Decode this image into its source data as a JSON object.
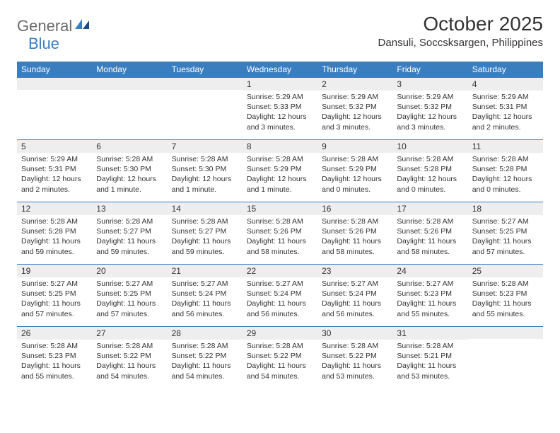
{
  "logo": {
    "word1": "General",
    "word2": "Blue"
  },
  "title": "October 2025",
  "location": "Dansuli, Soccsksargen, Philippines",
  "colors": {
    "header_bg": "#3b7ec0",
    "header_text": "#ffffff",
    "daynum_bg": "#eeeeee",
    "row_border": "#3b7ec0",
    "page_bg": "#ffffff",
    "text": "#333333",
    "logo_gray": "#6b6b6b",
    "logo_blue": "#3b7ec0"
  },
  "table": {
    "type": "calendar",
    "columns": [
      "Sunday",
      "Monday",
      "Tuesday",
      "Wednesday",
      "Thursday",
      "Friday",
      "Saturday"
    ],
    "col_count": 7,
    "fontsize_header": 12,
    "fontsize_daynum": 12,
    "fontsize_body": 10.5,
    "weeks": [
      [
        {
          "day": "",
          "sunrise": "",
          "sunset": "",
          "daylight": ""
        },
        {
          "day": "",
          "sunrise": "",
          "sunset": "",
          "daylight": ""
        },
        {
          "day": "",
          "sunrise": "",
          "sunset": "",
          "daylight": ""
        },
        {
          "day": "1",
          "sunrise": "Sunrise: 5:29 AM",
          "sunset": "Sunset: 5:33 PM",
          "daylight": "Daylight: 12 hours and 3 minutes."
        },
        {
          "day": "2",
          "sunrise": "Sunrise: 5:29 AM",
          "sunset": "Sunset: 5:32 PM",
          "daylight": "Daylight: 12 hours and 3 minutes."
        },
        {
          "day": "3",
          "sunrise": "Sunrise: 5:29 AM",
          "sunset": "Sunset: 5:32 PM",
          "daylight": "Daylight: 12 hours and 3 minutes."
        },
        {
          "day": "4",
          "sunrise": "Sunrise: 5:29 AM",
          "sunset": "Sunset: 5:31 PM",
          "daylight": "Daylight: 12 hours and 2 minutes."
        }
      ],
      [
        {
          "day": "5",
          "sunrise": "Sunrise: 5:29 AM",
          "sunset": "Sunset: 5:31 PM",
          "daylight": "Daylight: 12 hours and 2 minutes."
        },
        {
          "day": "6",
          "sunrise": "Sunrise: 5:28 AM",
          "sunset": "Sunset: 5:30 PM",
          "daylight": "Daylight: 12 hours and 1 minute."
        },
        {
          "day": "7",
          "sunrise": "Sunrise: 5:28 AM",
          "sunset": "Sunset: 5:30 PM",
          "daylight": "Daylight: 12 hours and 1 minute."
        },
        {
          "day": "8",
          "sunrise": "Sunrise: 5:28 AM",
          "sunset": "Sunset: 5:29 PM",
          "daylight": "Daylight: 12 hours and 1 minute."
        },
        {
          "day": "9",
          "sunrise": "Sunrise: 5:28 AM",
          "sunset": "Sunset: 5:29 PM",
          "daylight": "Daylight: 12 hours and 0 minutes."
        },
        {
          "day": "10",
          "sunrise": "Sunrise: 5:28 AM",
          "sunset": "Sunset: 5:28 PM",
          "daylight": "Daylight: 12 hours and 0 minutes."
        },
        {
          "day": "11",
          "sunrise": "Sunrise: 5:28 AM",
          "sunset": "Sunset: 5:28 PM",
          "daylight": "Daylight: 12 hours and 0 minutes."
        }
      ],
      [
        {
          "day": "12",
          "sunrise": "Sunrise: 5:28 AM",
          "sunset": "Sunset: 5:28 PM",
          "daylight": "Daylight: 11 hours and 59 minutes."
        },
        {
          "day": "13",
          "sunrise": "Sunrise: 5:28 AM",
          "sunset": "Sunset: 5:27 PM",
          "daylight": "Daylight: 11 hours and 59 minutes."
        },
        {
          "day": "14",
          "sunrise": "Sunrise: 5:28 AM",
          "sunset": "Sunset: 5:27 PM",
          "daylight": "Daylight: 11 hours and 59 minutes."
        },
        {
          "day": "15",
          "sunrise": "Sunrise: 5:28 AM",
          "sunset": "Sunset: 5:26 PM",
          "daylight": "Daylight: 11 hours and 58 minutes."
        },
        {
          "day": "16",
          "sunrise": "Sunrise: 5:28 AM",
          "sunset": "Sunset: 5:26 PM",
          "daylight": "Daylight: 11 hours and 58 minutes."
        },
        {
          "day": "17",
          "sunrise": "Sunrise: 5:28 AM",
          "sunset": "Sunset: 5:26 PM",
          "daylight": "Daylight: 11 hours and 58 minutes."
        },
        {
          "day": "18",
          "sunrise": "Sunrise: 5:27 AM",
          "sunset": "Sunset: 5:25 PM",
          "daylight": "Daylight: 11 hours and 57 minutes."
        }
      ],
      [
        {
          "day": "19",
          "sunrise": "Sunrise: 5:27 AM",
          "sunset": "Sunset: 5:25 PM",
          "daylight": "Daylight: 11 hours and 57 minutes."
        },
        {
          "day": "20",
          "sunrise": "Sunrise: 5:27 AM",
          "sunset": "Sunset: 5:25 PM",
          "daylight": "Daylight: 11 hours and 57 minutes."
        },
        {
          "day": "21",
          "sunrise": "Sunrise: 5:27 AM",
          "sunset": "Sunset: 5:24 PM",
          "daylight": "Daylight: 11 hours and 56 minutes."
        },
        {
          "day": "22",
          "sunrise": "Sunrise: 5:27 AM",
          "sunset": "Sunset: 5:24 PM",
          "daylight": "Daylight: 11 hours and 56 minutes."
        },
        {
          "day": "23",
          "sunrise": "Sunrise: 5:27 AM",
          "sunset": "Sunset: 5:24 PM",
          "daylight": "Daylight: 11 hours and 56 minutes."
        },
        {
          "day": "24",
          "sunrise": "Sunrise: 5:27 AM",
          "sunset": "Sunset: 5:23 PM",
          "daylight": "Daylight: 11 hours and 55 minutes."
        },
        {
          "day": "25",
          "sunrise": "Sunrise: 5:28 AM",
          "sunset": "Sunset: 5:23 PM",
          "daylight": "Daylight: 11 hours and 55 minutes."
        }
      ],
      [
        {
          "day": "26",
          "sunrise": "Sunrise: 5:28 AM",
          "sunset": "Sunset: 5:23 PM",
          "daylight": "Daylight: 11 hours and 55 minutes."
        },
        {
          "day": "27",
          "sunrise": "Sunrise: 5:28 AM",
          "sunset": "Sunset: 5:22 PM",
          "daylight": "Daylight: 11 hours and 54 minutes."
        },
        {
          "day": "28",
          "sunrise": "Sunrise: 5:28 AM",
          "sunset": "Sunset: 5:22 PM",
          "daylight": "Daylight: 11 hours and 54 minutes."
        },
        {
          "day": "29",
          "sunrise": "Sunrise: 5:28 AM",
          "sunset": "Sunset: 5:22 PM",
          "daylight": "Daylight: 11 hours and 54 minutes."
        },
        {
          "day": "30",
          "sunrise": "Sunrise: 5:28 AM",
          "sunset": "Sunset: 5:22 PM",
          "daylight": "Daylight: 11 hours and 53 minutes."
        },
        {
          "day": "31",
          "sunrise": "Sunrise: 5:28 AM",
          "sunset": "Sunset: 5:21 PM",
          "daylight": "Daylight: 11 hours and 53 minutes."
        },
        {
          "day": "",
          "sunrise": "",
          "sunset": "",
          "daylight": ""
        }
      ]
    ]
  }
}
